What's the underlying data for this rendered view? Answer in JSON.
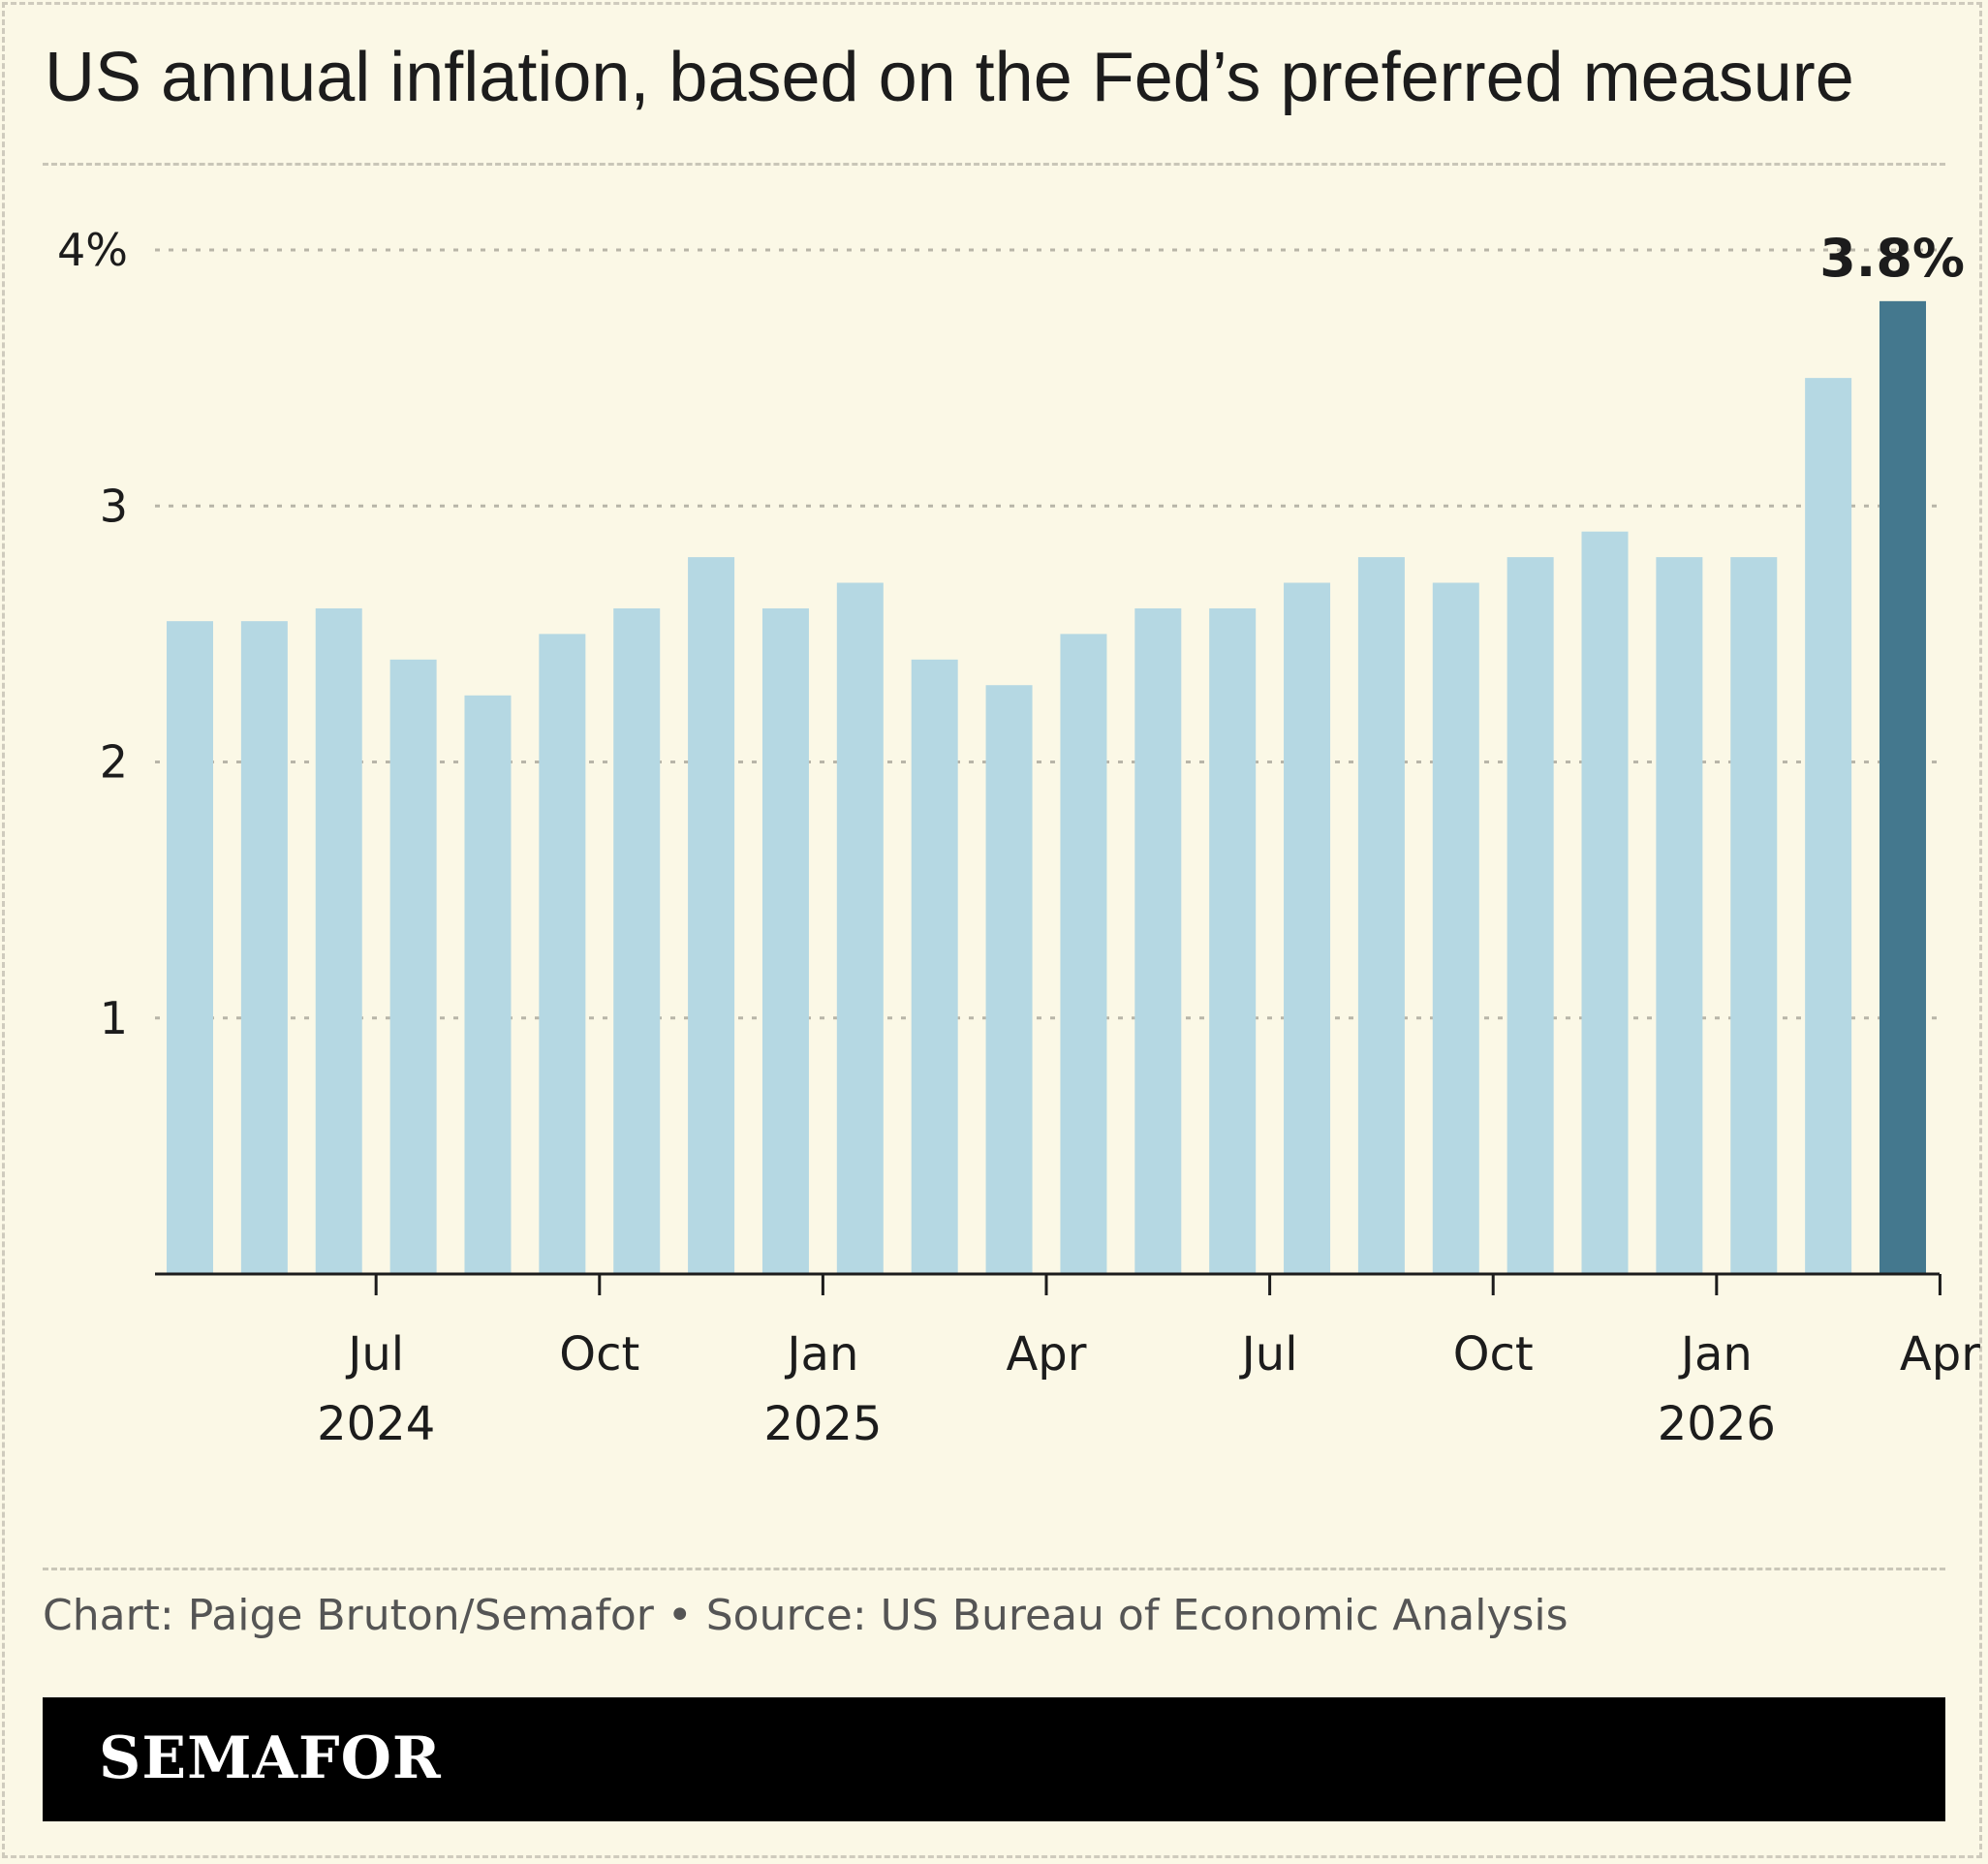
{
  "title": "US annual inflation, based on the Fed’s preferred measure",
  "footer": {
    "credit": "Chart: Paige Bruton/Semafor • Source: US Bureau of Economic Analysis",
    "brand": "SEMAFOR"
  },
  "colors": {
    "background": "#fbf8e6",
    "bar": "#b5d8e3",
    "highlight_bar": "#44788e",
    "text": "#1c1c1c"
  },
  "chart_data": {
    "type": "bar",
    "title": "US annual inflation, based on the Fed’s preferred measure",
    "xlabel": "",
    "ylabel": "",
    "ylim": [
      0,
      4
    ],
    "y_ticks": [
      {
        "value": 1,
        "label": "1"
      },
      {
        "value": 2,
        "label": "2"
      },
      {
        "value": 3,
        "label": "3"
      },
      {
        "value": 4,
        "label": "4%"
      }
    ],
    "grid": true,
    "categories": [
      "2024-05",
      "2024-06",
      "2024-07",
      "2024-08",
      "2024-09",
      "2024-10",
      "2024-11",
      "2024-12",
      "2025-01",
      "2025-02",
      "2025-03",
      "2025-04",
      "2025-05",
      "2025-06",
      "2025-07",
      "2025-08",
      "2025-09",
      "2025-10",
      "2025-11",
      "2025-12",
      "2026-01",
      "2026-02",
      "2026-03",
      "2026-04"
    ],
    "values": [
      2.55,
      2.55,
      2.6,
      2.4,
      2.26,
      2.5,
      2.6,
      2.8,
      2.6,
      2.7,
      2.4,
      2.3,
      2.5,
      2.6,
      2.6,
      2.7,
      2.8,
      2.7,
      2.8,
      2.9,
      2.8,
      2.8,
      3.5,
      3.8
    ],
    "highlight_index": 23,
    "annotation": {
      "label": "3.8%"
    },
    "x_ticks": [
      {
        "index": 2,
        "label": "Jul",
        "year": "2024"
      },
      {
        "index": 5,
        "label": "Oct",
        "year": ""
      },
      {
        "index": 8,
        "label": "Jan",
        "year": "2025"
      },
      {
        "index": 11,
        "label": "Apr",
        "year": ""
      },
      {
        "index": 14,
        "label": "Jul",
        "year": ""
      },
      {
        "index": 17,
        "label": "Oct",
        "year": ""
      },
      {
        "index": 20,
        "label": "Jan",
        "year": "2026"
      },
      {
        "index": 23,
        "label": "Apr",
        "year": ""
      }
    ]
  }
}
